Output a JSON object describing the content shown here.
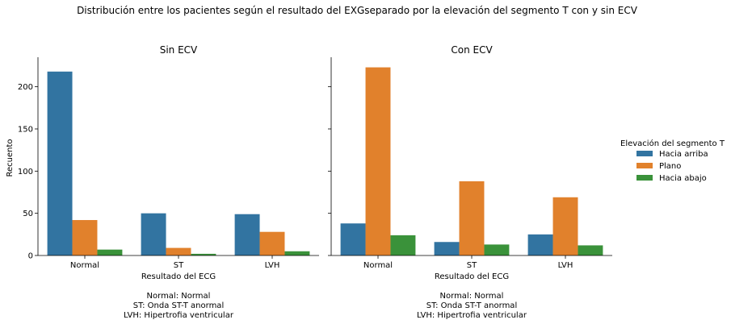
{
  "chart_data": {
    "type": "bar",
    "title": "Distribución entre los pacientes según el resultado del EXGseparado por la elevación del segmento T con y sin ECV",
    "ylabel": "Recuento",
    "xlabel": "Resultado del ECG",
    "ylim": [
      0,
      235
    ],
    "yticks": [
      0,
      50,
      100,
      150,
      200
    ],
    "categories": [
      "Normal",
      "ST",
      "LVH"
    ],
    "legend": {
      "title": "Elevación del segmento T",
      "placement": "right",
      "entries": [
        "Hacia arriba",
        "Plano",
        "Hacia abajo"
      ]
    },
    "colors": {
      "Hacia arriba": "#3274a1",
      "Plano": "#e1812c",
      "Hacia abajo": "#3a923a"
    },
    "panels": [
      {
        "title": "Sin ECV",
        "series": [
          {
            "name": "Hacia arriba",
            "values": [
              218,
              50,
              49
            ]
          },
          {
            "name": "Plano",
            "values": [
              42,
              9,
              28
            ]
          },
          {
            "name": "Hacia abajo",
            "values": [
              7,
              2,
              5
            ]
          }
        ],
        "note": [
          "Normal: Normal",
          "ST: Onda ST-T anormal",
          "LVH: Hipertrofia ventricular"
        ]
      },
      {
        "title": "Con ECV",
        "series": [
          {
            "name": "Hacia arriba",
            "values": [
              38,
              16,
              25
            ]
          },
          {
            "name": "Plano",
            "values": [
              223,
              88,
              69
            ]
          },
          {
            "name": "Hacia abajo",
            "values": [
              24,
              13,
              12
            ]
          }
        ],
        "note": [
          "Normal: Normal",
          "ST: Onda ST-T anormal",
          "LVH: Hipertrofia ventricular"
        ]
      }
    ]
  }
}
